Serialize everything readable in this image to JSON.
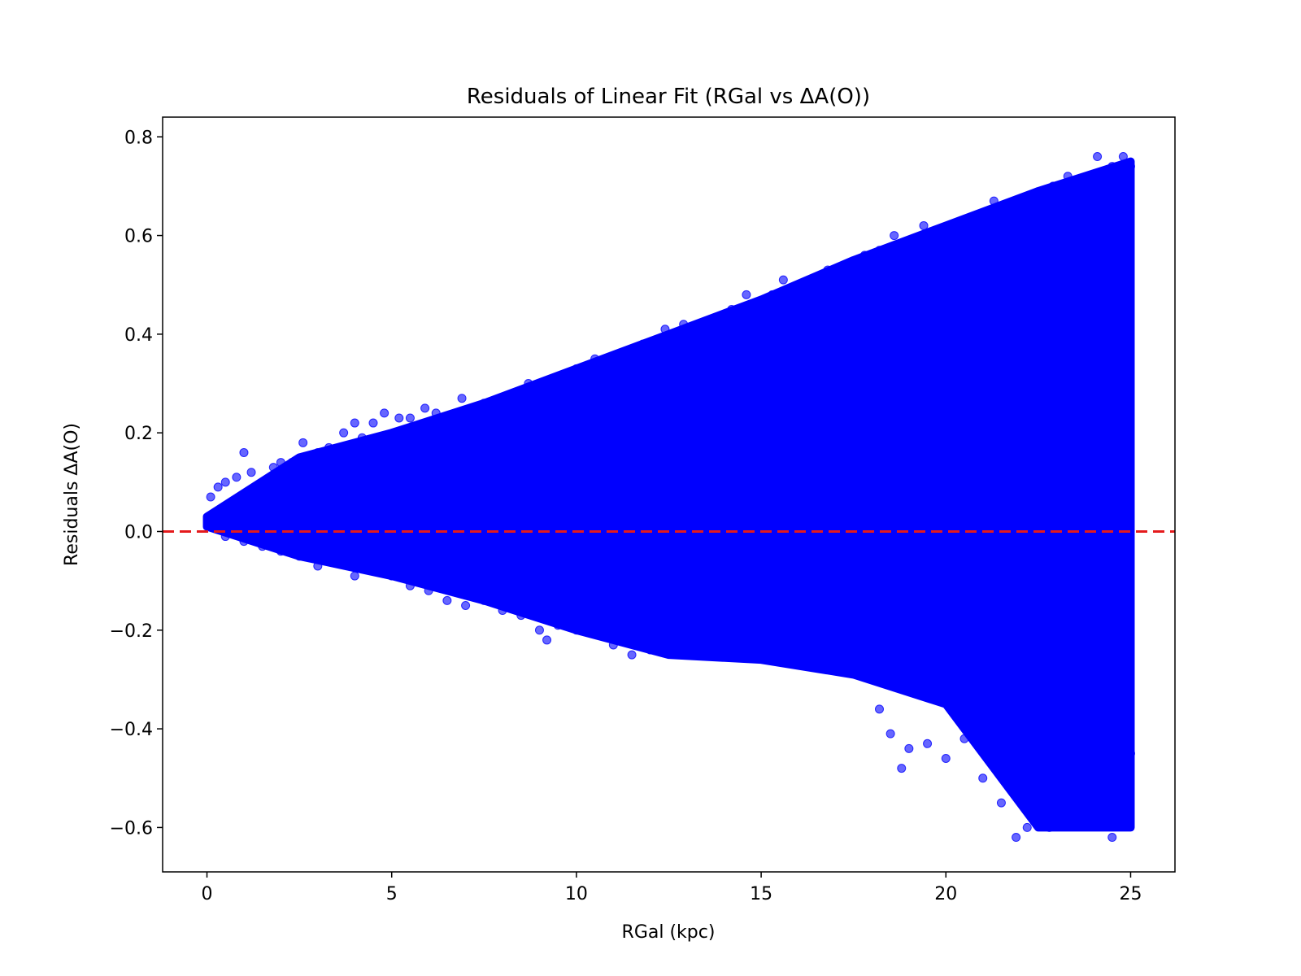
{
  "chart_data": {
    "type": "scatter",
    "title": "Residuals of Linear Fit (RGal vs ΔA(O))",
    "xlabel": "RGal (kpc)",
    "ylabel": "Residuals ΔA(O)",
    "xlim": [
      -1.2,
      26.2
    ],
    "ylim": [
      -0.69,
      0.84
    ],
    "xticks": [
      0,
      5,
      10,
      15,
      20,
      25
    ],
    "xtick_labels": [
      "0",
      "5",
      "10",
      "15",
      "20",
      "25"
    ],
    "yticks": [
      -0.6,
      -0.4,
      -0.2,
      0.0,
      0.2,
      0.4,
      0.6,
      0.8
    ],
    "ytick_labels": [
      "−0.6",
      "−0.4",
      "−0.2",
      "0.0",
      "0.2",
      "0.4",
      "0.6",
      "0.8"
    ],
    "grid": false,
    "marker_color": "#0000ff",
    "marker_alpha": 0.6,
    "reference_line": {
      "y": 0.0,
      "style": "dashed",
      "color": "#e41a1c"
    },
    "envelope": {
      "x": [
        0,
        2.5,
        5,
        7.5,
        10,
        12.5,
        15,
        17.5,
        20,
        22.5,
        25
      ],
      "upper": [
        0.03,
        0.15,
        0.2,
        0.26,
        0.33,
        0.4,
        0.47,
        0.55,
        0.62,
        0.69,
        0.75
      ],
      "lower": [
        0.01,
        -0.05,
        -0.09,
        -0.14,
        -0.2,
        -0.25,
        -0.26,
        -0.29,
        -0.35,
        -0.6,
        -0.6
      ]
    },
    "series": [
      {
        "x": [
          0.1,
          0.3,
          0.5,
          0.8,
          1.0,
          1.2,
          1.5,
          1.8,
          2.0,
          2.3,
          2.6,
          3.0,
          3.3,
          3.7,
          4.0,
          4.2,
          4.5,
          4.8,
          5.2,
          5.5,
          5.9,
          6.2,
          6.6,
          6.9,
          7.2,
          7.5,
          7.9,
          8.3,
          8.7,
          9.0,
          9.2,
          9.6,
          10.0,
          10.5,
          11.0,
          11.3,
          11.8,
          12.4,
          12.9,
          13.5,
          14.2,
          14.6,
          15.0,
          15.3,
          15.6,
          16.2,
          16.8,
          17.3,
          17.8,
          18.2,
          18.6,
          18.9,
          19.4,
          19.9,
          20.4,
          20.9,
          21.3,
          21.8,
          22.0,
          22.4,
          22.9,
          23.3,
          23.7,
          24.1,
          24.5,
          24.8,
          25.0
        ],
        "y": [
          0.07,
          0.09,
          0.1,
          0.11,
          0.16,
          0.12,
          0.1,
          0.13,
          0.14,
          0.14,
          0.18,
          0.16,
          0.17,
          0.2,
          0.22,
          0.19,
          0.22,
          0.24,
          0.23,
          0.23,
          0.25,
          0.24,
          0.22,
          0.27,
          0.23,
          0.26,
          0.25,
          0.28,
          0.3,
          0.29,
          0.27,
          0.31,
          0.33,
          0.35,
          0.34,
          0.36,
          0.38,
          0.41,
          0.42,
          0.42,
          0.45,
          0.48,
          0.46,
          0.48,
          0.51,
          0.5,
          0.53,
          0.52,
          0.56,
          0.57,
          0.6,
          0.58,
          0.62,
          0.61,
          0.63,
          0.62,
          0.67,
          0.66,
          0.64,
          0.68,
          0.7,
          0.72,
          0.71,
          0.76,
          0.74,
          0.76,
          0.74
        ]
      },
      {
        "x": [
          0.5,
          1.0,
          1.5,
          2.0,
          2.5,
          3.0,
          3.5,
          4.0,
          4.5,
          5.0,
          5.5,
          6.0,
          6.5,
          7.0,
          7.5,
          8.0,
          8.5,
          9.0,
          9.2,
          9.5,
          10.0,
          10.5,
          11.0,
          11.5,
          12.0,
          12.5,
          13.0,
          13.5,
          14.0,
          14.5,
          15.0,
          15.5,
          16.0,
          16.5,
          17.0,
          17.5,
          18.0,
          18.2,
          18.5,
          18.8,
          19.0,
          19.5,
          20.0,
          20.5,
          21.0,
          21.5,
          21.9,
          22.2,
          22.5,
          22.8,
          23.0,
          23.5,
          24.0,
          24.5,
          24.8,
          25.0
        ],
        "y": [
          -0.01,
          -0.02,
          -0.03,
          -0.04,
          -0.05,
          -0.07,
          -0.06,
          -0.09,
          -0.08,
          -0.09,
          -0.11,
          -0.12,
          -0.14,
          -0.15,
          -0.14,
          -0.16,
          -0.17,
          -0.2,
          -0.22,
          -0.19,
          -0.2,
          -0.18,
          -0.23,
          -0.25,
          -0.24,
          -0.23,
          -0.22,
          -0.22,
          -0.2,
          -0.22,
          -0.24,
          -0.26,
          -0.25,
          -0.25,
          -0.24,
          -0.27,
          -0.3,
          -0.36,
          -0.41,
          -0.48,
          -0.44,
          -0.43,
          -0.46,
          -0.42,
          -0.5,
          -0.55,
          -0.62,
          -0.6,
          -0.57,
          -0.6,
          -0.58,
          -0.55,
          -0.53,
          -0.62,
          -0.5,
          -0.45
        ]
      }
    ]
  }
}
